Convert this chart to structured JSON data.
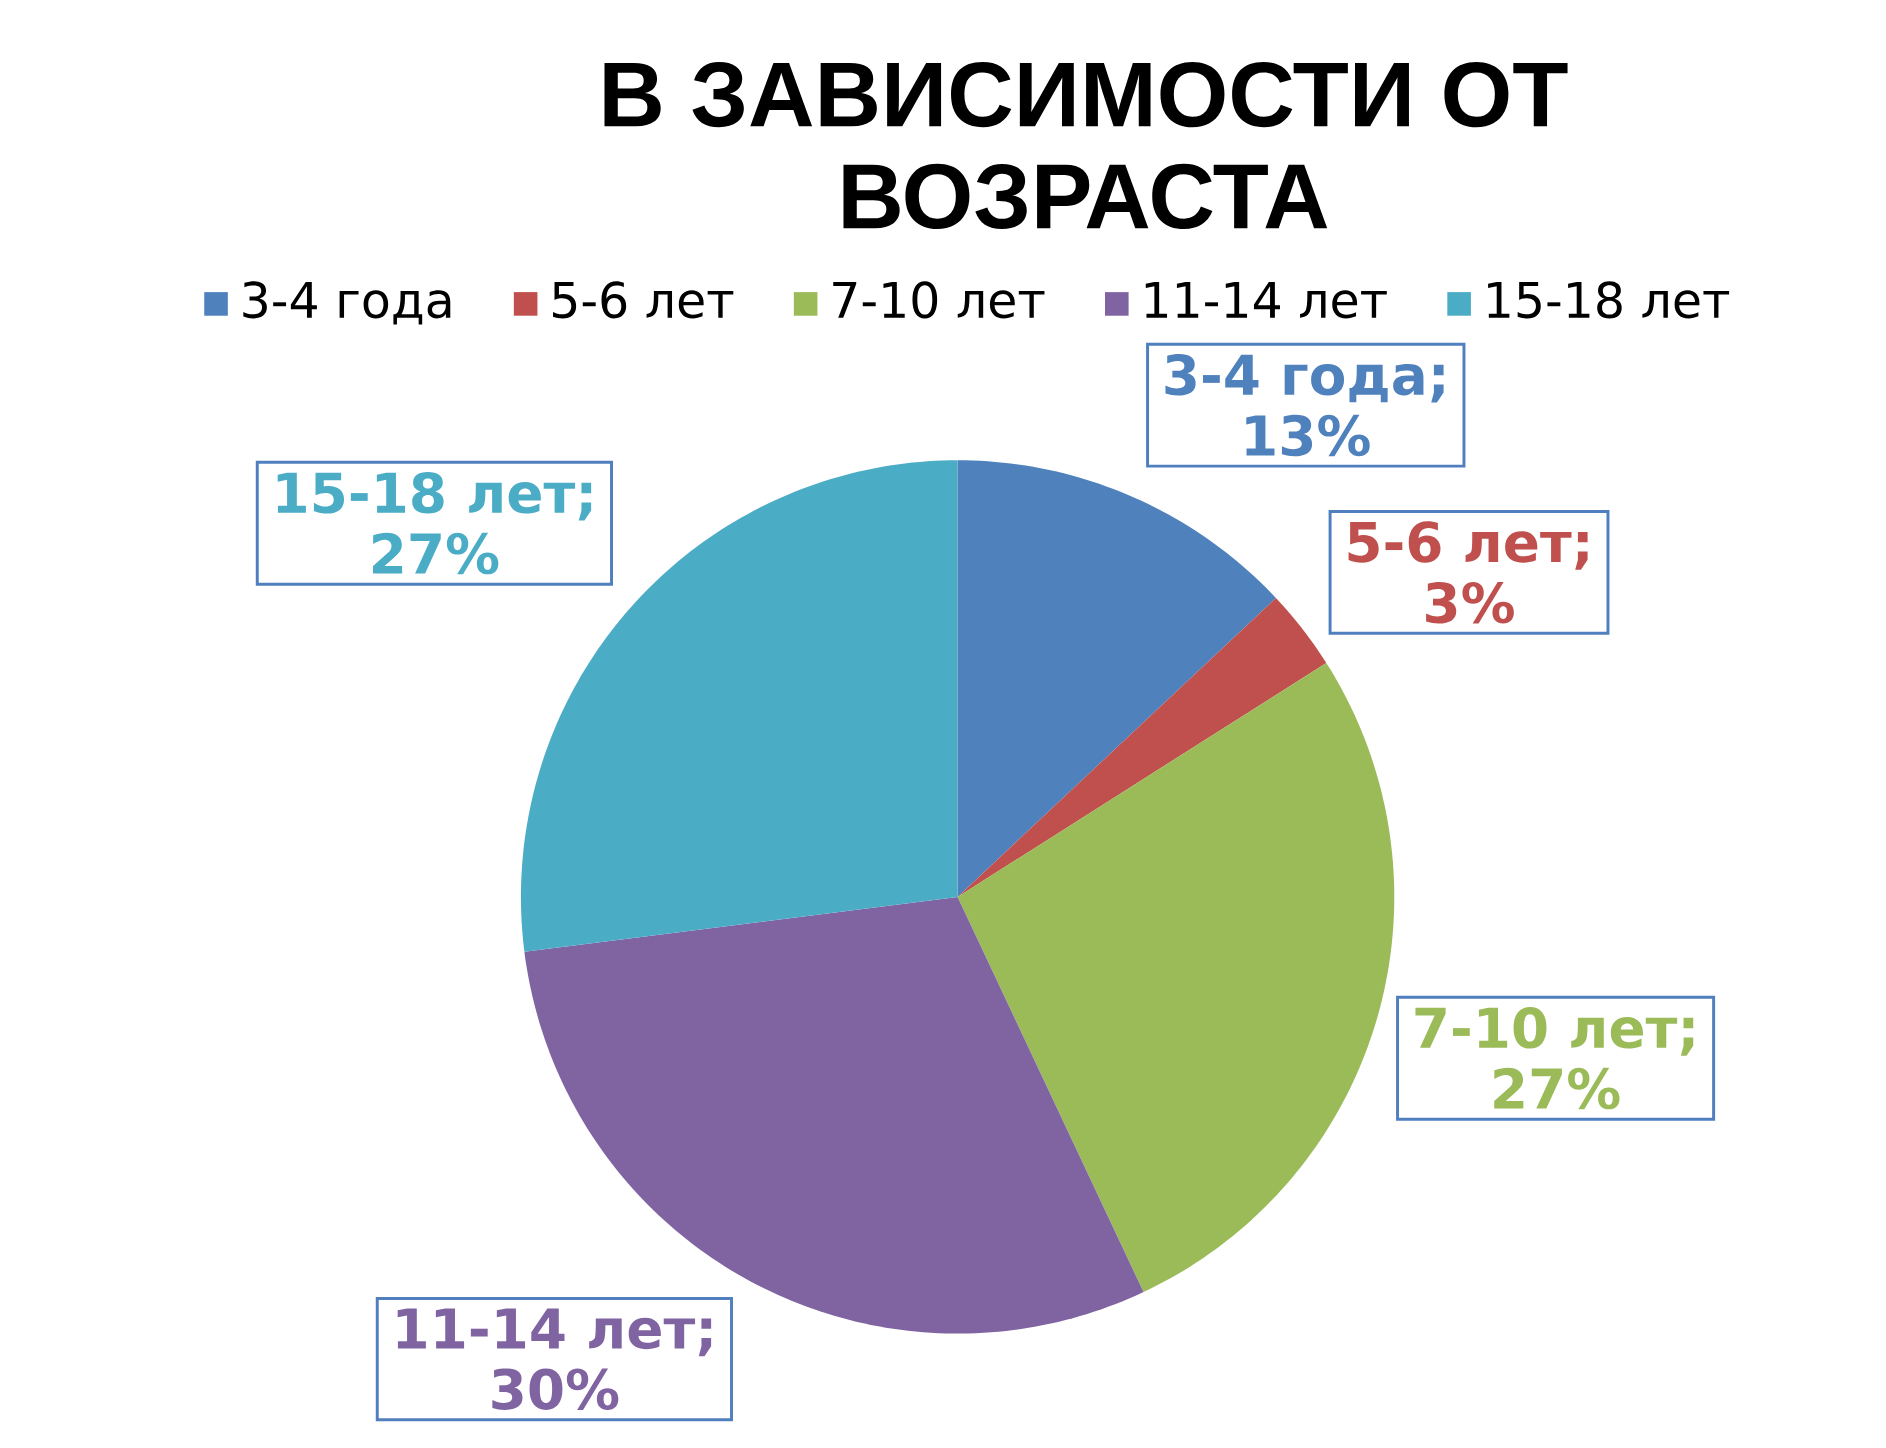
{
  "chart_data": {
    "type": "pie",
    "title": "В ЗАВИСИМОСТИ ОТ ВОЗРАСТА",
    "categories": [
      "3-4 года",
      "5-6 лет",
      "7-10 лет",
      "11-14 лет",
      "15-18 лет"
    ],
    "values": [
      13,
      3,
      27,
      30,
      27
    ],
    "colors": [
      "#4f81bd",
      "#c0504d",
      "#9bbb59",
      "#8064a2",
      "#4bacc6"
    ],
    "value_labels": [
      "3-4 года; 13%",
      "5-6 лет; 3%",
      "7-10 лет; 27%",
      "11-14 лет; 30%",
      "15-18 лет; 27%"
    ],
    "legend": "top"
  }
}
